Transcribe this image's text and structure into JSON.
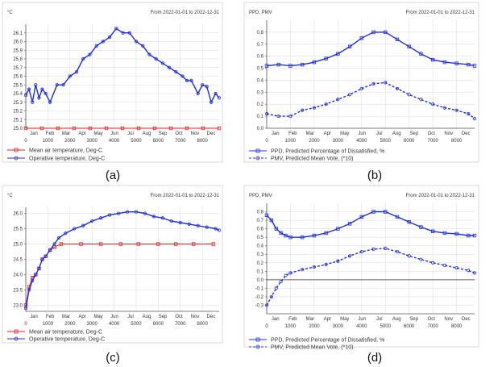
{
  "colors": {
    "mean_air": "#e02020",
    "operative": "#1f2fd8",
    "ppd": "#1f2fd8",
    "pmv": "#1f2fd8",
    "grid": "#d8d8d8",
    "axis": "#555555"
  },
  "month_labels": [
    "Jan",
    "Feb",
    "Mar",
    "Apr",
    "May",
    "Jun",
    "Jul",
    "Aug",
    "Sep",
    "Oct",
    "Nov",
    "Dec"
  ],
  "x_tick_values": [
    0,
    1000,
    2000,
    3000,
    4000,
    5000,
    6000,
    7000,
    8000
  ],
  "chart_data": [
    {
      "panel": "a",
      "caption": "(a)",
      "type": "line",
      "title": "From 2022-01-01 to 2022-12-31",
      "unit_label": "°C",
      "xlim": [
        0,
        8760
      ],
      "ylim": [
        25.0,
        26.2
      ],
      "y_ticks": [
        "25.0",
        "25.1",
        "25.2",
        "25.3",
        "25.4",
        "25.5",
        "25.6",
        "25.7",
        "25.8",
        "25.9",
        "26.0",
        "26.1"
      ],
      "y_tick_values": [
        25.0,
        25.1,
        25.2,
        25.3,
        25.4,
        25.5,
        25.6,
        25.7,
        25.8,
        25.9,
        26.0,
        26.1
      ],
      "series": [
        {
          "name": "Mean air temperature, Deg-C",
          "style": "solid-square",
          "x": [
            0,
            730,
            1460,
            2190,
            2920,
            3650,
            4380,
            5110,
            5840,
            6570,
            7300,
            8030,
            8760
          ],
          "y": [
            25.0,
            25.0,
            25.0,
            25.0,
            25.0,
            25.0,
            25.0,
            25.0,
            25.0,
            25.0,
            25.0,
            25.0,
            25.0
          ]
        },
        {
          "name": "Operative temperature, Deg-C",
          "style": "solid-circle",
          "x": [
            0,
            150,
            300,
            450,
            600,
            744,
            900,
            1100,
            1416,
            1700,
            2000,
            2300,
            2600,
            2900,
            3200,
            3500,
            3800,
            4100,
            4400,
            4700,
            5000,
            5300,
            5600,
            5900,
            6200,
            6500,
            6800,
            7100,
            7300,
            7500,
            7800,
            8000,
            8200,
            8400,
            8600,
            8760
          ],
          "y": [
            25.38,
            25.45,
            25.3,
            25.5,
            25.35,
            25.45,
            25.4,
            25.3,
            25.5,
            25.5,
            25.6,
            25.65,
            25.8,
            25.85,
            25.95,
            26.0,
            26.05,
            26.15,
            26.1,
            26.1,
            26.0,
            25.95,
            25.85,
            25.8,
            25.75,
            25.7,
            25.65,
            25.6,
            25.55,
            25.55,
            25.4,
            25.5,
            25.48,
            25.3,
            25.4,
            25.35
          ]
        }
      ]
    },
    {
      "panel": "b",
      "caption": "(b)",
      "type": "line",
      "title": "From 2022-01-01 to 2022-12-31",
      "unit_label": "PPD, PMV",
      "xlim": [
        0,
        8760
      ],
      "ylim": [
        0.0,
        0.9
      ],
      "y_ticks": [
        "0.0",
        "0.1",
        "0.2",
        "0.3",
        "0.4",
        "0.5",
        "0.6",
        "0.7",
        "0.8"
      ],
      "y_tick_values": [
        0.0,
        0.1,
        0.2,
        0.3,
        0.4,
        0.5,
        0.6,
        0.7,
        0.8
      ],
      "series": [
        {
          "name": "PPD, Predicted Percentage of Dissatisfied, %",
          "style": "solid-square",
          "x": [
            0,
            500,
            1000,
            1500,
            2000,
            2500,
            3000,
            3500,
            4000,
            4500,
            5000,
            5500,
            6000,
            6500,
            7000,
            7500,
            8000,
            8500,
            8760
          ],
          "y": [
            0.52,
            0.53,
            0.52,
            0.53,
            0.55,
            0.58,
            0.62,
            0.68,
            0.75,
            0.8,
            0.8,
            0.74,
            0.68,
            0.62,
            0.57,
            0.55,
            0.54,
            0.53,
            0.52
          ]
        },
        {
          "name": "PMV, Predicted Mean Vote, (*10)",
          "style": "dashed-circle",
          "x": [
            0,
            500,
            1000,
            1500,
            2000,
            2500,
            3000,
            3500,
            4000,
            4500,
            5000,
            5500,
            6000,
            6500,
            7000,
            7500,
            8000,
            8500,
            8760
          ],
          "y": [
            0.12,
            0.1,
            0.1,
            0.15,
            0.17,
            0.2,
            0.24,
            0.28,
            0.33,
            0.37,
            0.38,
            0.33,
            0.28,
            0.24,
            0.2,
            0.17,
            0.15,
            0.12,
            0.08
          ]
        }
      ]
    },
    {
      "panel": "c",
      "caption": "(c)",
      "type": "line",
      "title": "From 2022-01-01 to 2022-12-31",
      "unit_label": "°C",
      "xlim": [
        0,
        8760
      ],
      "ylim": [
        22.8,
        26.2
      ],
      "y_ticks": [
        "23.0",
        "23.5",
        "24.0",
        "24.5",
        "25.0",
        "25.5",
        "26.0"
      ],
      "y_tick_values": [
        23.0,
        23.5,
        24.0,
        24.5,
        25.0,
        25.5,
        26.0
      ],
      "series": [
        {
          "name": "Mean air temperature, Deg-C",
          "style": "solid-square",
          "x": [
            0,
            150,
            300,
            450,
            600,
            750,
            900,
            1100,
            1300,
            1600,
            2500,
            3400,
            4300,
            5100,
            6000,
            6800,
            7600,
            8500
          ],
          "y": [
            23.0,
            23.6,
            23.9,
            24.0,
            24.2,
            24.5,
            24.6,
            24.8,
            24.9,
            25.0,
            25.0,
            25.0,
            25.0,
            25.0,
            25.0,
            25.0,
            25.0,
            25.0
          ]
        },
        {
          "name": "Operative temperature, Deg-C",
          "style": "solid-circle",
          "x": [
            0,
            150,
            300,
            450,
            600,
            750,
            900,
            1100,
            1300,
            1500,
            1800,
            2200,
            2600,
            3000,
            3400,
            3800,
            4200,
            4600,
            5000,
            5400,
            5800,
            6200,
            6600,
            7000,
            7400,
            7800,
            8200,
            8600,
            8760
          ],
          "y": [
            22.9,
            23.5,
            23.8,
            24.0,
            24.2,
            24.5,
            24.6,
            24.8,
            25.0,
            25.2,
            25.35,
            25.5,
            25.6,
            25.75,
            25.85,
            25.95,
            26.0,
            26.05,
            26.05,
            26.0,
            25.9,
            25.85,
            25.75,
            25.7,
            25.65,
            25.6,
            25.55,
            25.5,
            25.45
          ]
        }
      ]
    },
    {
      "panel": "d",
      "caption": "(d)",
      "type": "line",
      "title": "From 2022-01-01 to 2022-12-31",
      "unit_label": "PPD, PMV",
      "xlim": [
        0,
        8760
      ],
      "ylim": [
        -0.4,
        0.9
      ],
      "y_ticks": [
        "-0.3",
        "-0.2",
        "-0.1",
        "0.0",
        "0.1",
        "0.2",
        "0.3",
        "0.4",
        "0.5",
        "0.6",
        "0.7",
        "0.8"
      ],
      "y_tick_values": [
        -0.3,
        -0.2,
        -0.1,
        0.0,
        0.1,
        0.2,
        0.3,
        0.4,
        0.5,
        0.6,
        0.7,
        0.8
      ],
      "series": [
        {
          "name": "PPD, Predicted Percentage of Dissatisfied, %",
          "style": "solid-square",
          "x": [
            0,
            200,
            400,
            600,
            800,
            1000,
            1500,
            2000,
            2500,
            3000,
            3500,
            4000,
            4500,
            5000,
            5500,
            6000,
            6500,
            7000,
            7500,
            8000,
            8500,
            8760
          ],
          "y": [
            0.76,
            0.7,
            0.6,
            0.55,
            0.52,
            0.5,
            0.5,
            0.52,
            0.55,
            0.6,
            0.66,
            0.74,
            0.8,
            0.8,
            0.74,
            0.68,
            0.62,
            0.57,
            0.55,
            0.54,
            0.52,
            0.52
          ]
        },
        {
          "name": "PMV, Predicted Mean Vote, (*10)",
          "style": "dashed-circle",
          "x": [
            0,
            200,
            400,
            600,
            800,
            1000,
            1500,
            2000,
            2500,
            3000,
            3500,
            4000,
            4500,
            5000,
            5500,
            6000,
            6500,
            7000,
            7500,
            8000,
            8500,
            8760
          ],
          "y": [
            -0.3,
            -0.2,
            -0.1,
            -0.02,
            0.05,
            0.08,
            0.12,
            0.15,
            0.18,
            0.22,
            0.28,
            0.33,
            0.36,
            0.37,
            0.33,
            0.28,
            0.24,
            0.2,
            0.17,
            0.14,
            0.11,
            0.08
          ]
        }
      ]
    }
  ]
}
